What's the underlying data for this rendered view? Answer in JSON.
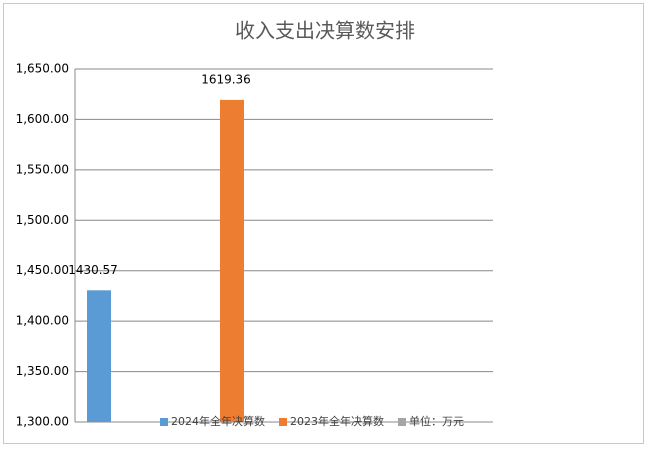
{
  "chart_data": {
    "type": "bar",
    "title": "收入支出决算数安排",
    "categories": [
      null
    ],
    "series": [
      {
        "name": "2024年全年决算数",
        "color": "#5b9bd5",
        "values": [
          1430.57
        ]
      },
      {
        "name": "2023年全年决算数",
        "color": "#ed7d31",
        "values": [
          1619.36
        ]
      },
      {
        "name": "单位：万元",
        "color": "#a5a5a5",
        "values": [
          null
        ]
      }
    ],
    "ylim": [
      1300,
      1650
    ],
    "yticks": [
      {
        "value": 1300,
        "label": "1,300.00"
      },
      {
        "value": 1350,
        "label": "1,350.00"
      },
      {
        "value": 1400,
        "label": "1,400.00"
      },
      {
        "value": 1450,
        "label": "1,450.00"
      },
      {
        "value": 1500,
        "label": "1,500.00"
      },
      {
        "value": 1550,
        "label": "1,550.00"
      },
      {
        "value": 1600,
        "label": "1,600.00"
      },
      {
        "value": 1650,
        "label": "1,650.00"
      }
    ],
    "grid": true,
    "legend": "bottom-right"
  }
}
